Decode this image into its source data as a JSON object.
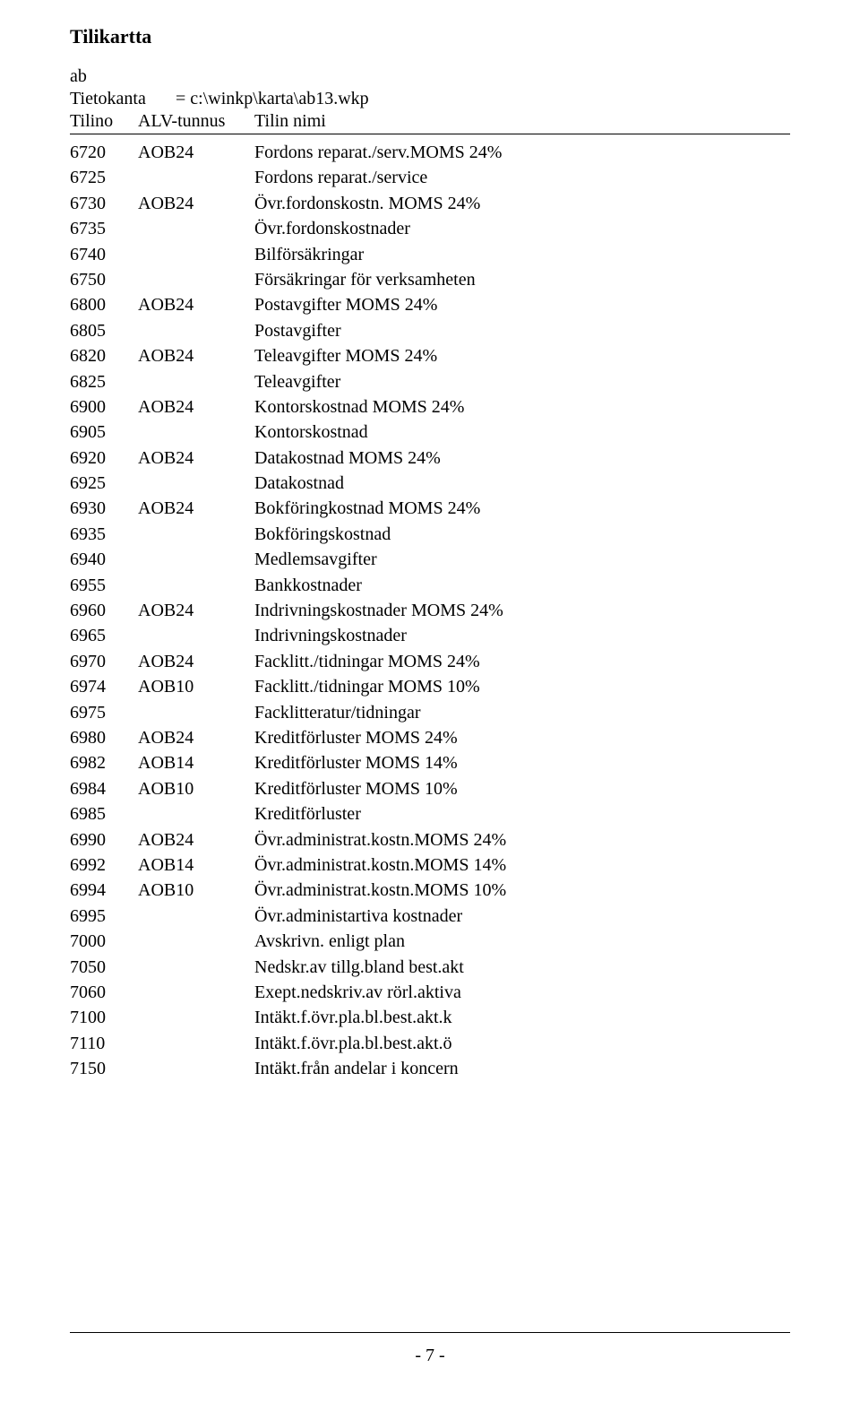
{
  "doc": {
    "title": "Tilikartta",
    "sub": "ab",
    "db_label": "Tietokanta",
    "db_value": "= c:\\winkp\\karta\\ab13.wkp",
    "header_tilino": "Tilino",
    "header_alv": "ALV-tunnus",
    "header_nimi": "Tilin nimi",
    "page_label": "- 7 -"
  },
  "rows": [
    {
      "tilino": "6720",
      "alv": "AOB24",
      "nimi": "Fordons reparat./serv.MOMS 24%"
    },
    {
      "tilino": "6725",
      "alv": "",
      "nimi": "Fordons reparat./service"
    },
    {
      "tilino": "6730",
      "alv": "AOB24",
      "nimi": "Övr.fordonskostn. MOMS 24%"
    },
    {
      "tilino": "6735",
      "alv": "",
      "nimi": "Övr.fordonskostnader"
    },
    {
      "tilino": "6740",
      "alv": "",
      "nimi": "Bilförsäkringar"
    },
    {
      "tilino": "6750",
      "alv": "",
      "nimi": "Försäkringar för verksamheten"
    },
    {
      "tilino": "6800",
      "alv": "AOB24",
      "nimi": "Postavgifter MOMS 24%"
    },
    {
      "tilino": "6805",
      "alv": "",
      "nimi": "Postavgifter"
    },
    {
      "tilino": "6820",
      "alv": "AOB24",
      "nimi": "Teleavgifter MOMS 24%"
    },
    {
      "tilino": "6825",
      "alv": "",
      "nimi": "Teleavgifter"
    },
    {
      "tilino": "6900",
      "alv": "AOB24",
      "nimi": "Kontorskostnad MOMS 24%"
    },
    {
      "tilino": "6905",
      "alv": "",
      "nimi": "Kontorskostnad"
    },
    {
      "tilino": "6920",
      "alv": "AOB24",
      "nimi": "Datakostnad MOMS 24%"
    },
    {
      "tilino": "6925",
      "alv": "",
      "nimi": "Datakostnad"
    },
    {
      "tilino": "6930",
      "alv": "AOB24",
      "nimi": "Bokföringkostnad MOMS 24%"
    },
    {
      "tilino": "6935",
      "alv": "",
      "nimi": "Bokföringskostnad"
    },
    {
      "tilino": "6940",
      "alv": "",
      "nimi": "Medlemsavgifter"
    },
    {
      "tilino": "6955",
      "alv": "",
      "nimi": "Bankkostnader"
    },
    {
      "tilino": "6960",
      "alv": "AOB24",
      "nimi": "Indrivningskostnader MOMS 24%"
    },
    {
      "tilino": "6965",
      "alv": "",
      "nimi": "Indrivningskostnader"
    },
    {
      "tilino": "6970",
      "alv": "AOB24",
      "nimi": "Facklitt./tidningar MOMS 24%"
    },
    {
      "tilino": "6974",
      "alv": "AOB10",
      "nimi": "Facklitt./tidningar MOMS 10%"
    },
    {
      "tilino": "6975",
      "alv": "",
      "nimi": "Facklitteratur/tidningar"
    },
    {
      "tilino": "6980",
      "alv": "AOB24",
      "nimi": "Kreditförluster MOMS 24%"
    },
    {
      "tilino": "6982",
      "alv": "AOB14",
      "nimi": "Kreditförluster MOMS 14%"
    },
    {
      "tilino": "6984",
      "alv": "AOB10",
      "nimi": "Kreditförluster MOMS 10%"
    },
    {
      "tilino": "6985",
      "alv": "",
      "nimi": "Kreditförluster"
    },
    {
      "tilino": "6990",
      "alv": "AOB24",
      "nimi": "Övr.administrat.kostn.MOMS 24%"
    },
    {
      "tilino": "6992",
      "alv": "AOB14",
      "nimi": "Övr.administrat.kostn.MOMS 14%"
    },
    {
      "tilino": "6994",
      "alv": "AOB10",
      "nimi": "Övr.administrat.kostn.MOMS 10%"
    },
    {
      "tilino": "6995",
      "alv": "",
      "nimi": "Övr.administartiva kostnader"
    },
    {
      "tilino": "7000",
      "alv": "",
      "nimi": "Avskrivn. enligt plan"
    },
    {
      "tilino": "7050",
      "alv": "",
      "nimi": "Nedskr.av tillg.bland best.akt"
    },
    {
      "tilino": "7060",
      "alv": "",
      "nimi": "Exept.nedskriv.av rörl.aktiva"
    },
    {
      "tilino": "7100",
      "alv": "",
      "nimi": "Intäkt.f.övr.pla.bl.best.akt.k"
    },
    {
      "tilino": "7110",
      "alv": "",
      "nimi": "Intäkt.f.övr.pla.bl.best.akt.ö"
    },
    {
      "tilino": "7150",
      "alv": "",
      "nimi": "Intäkt.från andelar i koncern"
    }
  ]
}
